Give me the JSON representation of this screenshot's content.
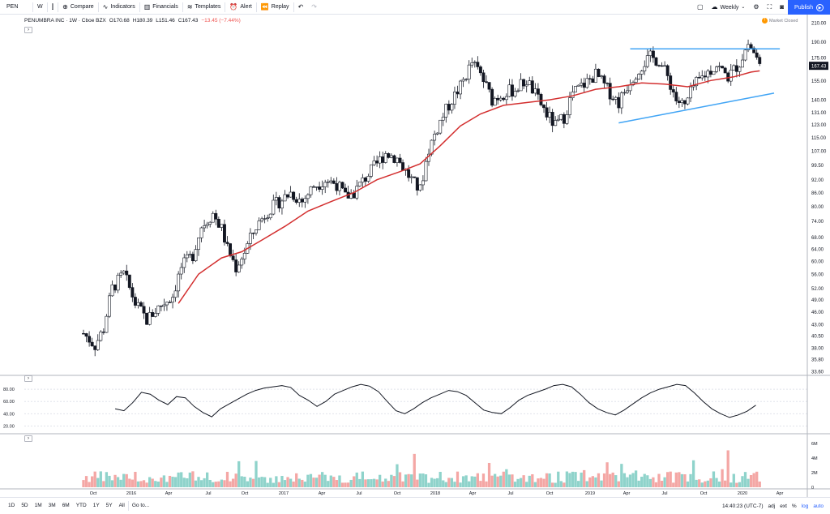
{
  "toolbar": {
    "symbol": "PEN",
    "interval": "W",
    "compare": "Compare",
    "indicators": "Indicators",
    "financials": "Financials",
    "templates": "Templates",
    "alert": "Alert",
    "replay": "Replay",
    "layout": "Weekly",
    "publish": "Publish"
  },
  "legend": {
    "name": "PENUMBRA INC · 1W · Cboe BZX",
    "open": "O170.68",
    "high": "H180.39",
    "low": "L151.46",
    "close": "C167.43",
    "change": "−13.45 (−7.44%)"
  },
  "market_status": "Market Closed",
  "price_axis": {
    "ticks": [
      "210.00",
      "190.00",
      "175.00",
      "167.43",
      "155.00",
      "140.00",
      "131.00",
      "123.00",
      "115.00",
      "107.00",
      "99.50",
      "92.00",
      "86.00",
      "80.00",
      "74.00",
      "68.00",
      "64.00",
      "60.00",
      "56.00",
      "52.00",
      "49.00",
      "46.00",
      "43.00",
      "40.50",
      "38.00",
      "35.80",
      "33.60"
    ],
    "last_price": "167.43"
  },
  "osc_axis": {
    "ticks": [
      "80.00",
      "60.00",
      "40.00",
      "20.00"
    ]
  },
  "vol_axis": {
    "ticks": [
      "6M",
      "4M",
      "2M",
      "0"
    ]
  },
  "time_axis": {
    "labels": [
      "Oct",
      "2016",
      "Apr",
      "Jul",
      "Oct",
      "2017",
      "Apr",
      "Jul",
      "Oct",
      "2018",
      "Apr",
      "Jul",
      "Oct",
      "2019",
      "Apr",
      "Jul",
      "Oct",
      "2020",
      "Apr"
    ]
  },
  "bottom_bar": {
    "ranges": [
      "1D",
      "5D",
      "1M",
      "3M",
      "6M",
      "YTD",
      "1Y",
      "5Y",
      "All"
    ],
    "goto": "Go to...",
    "time": "14:40:23 (UTC-7)",
    "adj": "adj",
    "ext": "ext",
    "percent": "%",
    "log": "log",
    "auto": "auto"
  },
  "colors": {
    "up": "#26a69a",
    "down": "#ef5350",
    "ma": "#d32f2f",
    "trend": "#42a5f5",
    "accent": "#2962ff"
  },
  "chart_data": {
    "type": "candlestick",
    "timeframe": "weekly",
    "price_scale": "log",
    "ylim": [
      33.6,
      210
    ],
    "last": 167.43,
    "close_path": [
      [
        0,
        41
      ],
      [
        4,
        38.5
      ],
      [
        7,
        42
      ],
      [
        10,
        52
      ],
      [
        14,
        56
      ],
      [
        18,
        48
      ],
      [
        22,
        44
      ],
      [
        26,
        47
      ],
      [
        31,
        50
      ],
      [
        34,
        58
      ],
      [
        38,
        62
      ],
      [
        41,
        72
      ],
      [
        45,
        77
      ],
      [
        48,
        71
      ],
      [
        50,
        64
      ],
      [
        53,
        58
      ],
      [
        56,
        63
      ],
      [
        60,
        72
      ],
      [
        64,
        78
      ],
      [
        68,
        82
      ],
      [
        72,
        86
      ],
      [
        76,
        82
      ],
      [
        80,
        89
      ],
      [
        84,
        92
      ],
      [
        88,
        90
      ],
      [
        91,
        84
      ],
      [
        94,
        86
      ],
      [
        98,
        93
      ],
      [
        102,
        100
      ],
      [
        105,
        106
      ],
      [
        109,
        103
      ],
      [
        112,
        96
      ],
      [
        115,
        90
      ],
      [
        117,
        87
      ],
      [
        120,
        108
      ],
      [
        124,
        125
      ],
      [
        128,
        140
      ],
      [
        131,
        150
      ],
      [
        135,
        170
      ],
      [
        138,
        160
      ],
      [
        142,
        140
      ],
      [
        146,
        145
      ],
      [
        150,
        148
      ],
      [
        154,
        155
      ],
      [
        158,
        140
      ],
      [
        161,
        130
      ],
      [
        164,
        122
      ],
      [
        167,
        128
      ],
      [
        170,
        145
      ],
      [
        174,
        152
      ],
      [
        178,
        160
      ],
      [
        182,
        148
      ],
      [
        186,
        138
      ],
      [
        190,
        155
      ],
      [
        194,
        168
      ],
      [
        197,
        175
      ],
      [
        200,
        172
      ],
      [
        203,
        158
      ],
      [
        206,
        140
      ],
      [
        209,
        135
      ],
      [
        212,
        150
      ],
      [
        216,
        160
      ],
      [
        220,
        168
      ],
      [
        224,
        158
      ],
      [
        228,
        170
      ],
      [
        231,
        188
      ],
      [
        233,
        180
      ],
      [
        235,
        167
      ]
    ],
    "ma_path": [
      [
        33,
        48
      ],
      [
        40,
        56
      ],
      [
        48,
        61
      ],
      [
        55,
        63
      ],
      [
        62,
        67
      ],
      [
        70,
        72
      ],
      [
        78,
        78
      ],
      [
        86,
        82
      ],
      [
        94,
        86
      ],
      [
        102,
        92
      ],
      [
        110,
        96
      ],
      [
        117,
        100
      ],
      [
        124,
        110
      ],
      [
        131,
        122
      ],
      [
        138,
        130
      ],
      [
        146,
        136
      ],
      [
        154,
        138
      ],
      [
        162,
        140
      ],
      [
        170,
        143
      ],
      [
        178,
        148
      ],
      [
        186,
        150
      ],
      [
        194,
        153
      ],
      [
        202,
        152
      ],
      [
        210,
        150
      ],
      [
        218,
        155
      ],
      [
        226,
        158
      ],
      [
        232,
        162
      ],
      [
        235,
        163
      ]
    ],
    "trendlines": [
      {
        "name": "resistance",
        "from": [
          190,
          183
        ],
        "to": [
          242,
          183
        ]
      },
      {
        "name": "support",
        "from": [
          186,
          124
        ],
        "to": [
          240,
          145
        ]
      }
    ],
    "oscillator": {
      "ylim": [
        10,
        100
      ],
      "values": [
        48,
        45,
        58,
        75,
        72,
        62,
        55,
        68,
        66,
        52,
        42,
        35,
        48,
        56,
        64,
        72,
        78,
        82,
        84,
        86,
        83,
        70,
        62,
        52,
        60,
        72,
        78,
        84,
        88,
        85,
        76,
        60,
        45,
        40,
        48,
        58,
        66,
        72,
        78,
        76,
        70,
        58,
        46,
        42,
        40,
        50,
        62,
        70,
        75,
        80,
        86,
        88,
        84,
        72,
        58,
        48,
        42,
        38,
        46,
        56,
        66,
        74,
        80,
        84,
        88,
        86,
        74,
        60,
        48,
        40,
        34,
        38,
        44,
        54
      ]
    },
    "volume": {
      "ylim": [
        0,
        7
      ],
      "unit": "M"
    }
  }
}
